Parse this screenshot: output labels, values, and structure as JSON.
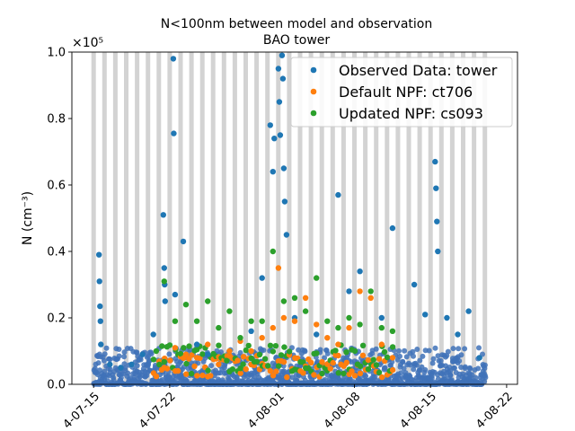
{
  "chart_data": {
    "type": "scatter",
    "title_line1": "N<100nm between model and observation",
    "title_line2": "BAO tower",
    "ylabel": "N (cm⁻³)",
    "y_multiplier_label": "×10⁵",
    "xlim": [
      "2014-07-13",
      "2014-08-23"
    ],
    "ylim": [
      0,
      1.0
    ],
    "y_ticks": [
      0.0,
      0.2,
      0.4,
      0.6,
      0.8,
      1.0
    ],
    "y_tick_labels": [
      "0.0",
      "0.2",
      "0.4",
      "0.6",
      "0.8",
      "1.0"
    ],
    "x_ticks": [
      "2014-07-15",
      "2014-07-22",
      "2014-08-01",
      "2014-08-08",
      "2014-08-15",
      "2014-08-22"
    ],
    "x_tick_labels": [
      "4-07-15",
      "4-07-22",
      "4-08-01",
      "4-08-08",
      "4-08-15",
      "4-08-22"
    ],
    "night_shading": {
      "color": "#d3d3d3",
      "start_day": "2014-07-15",
      "end_day": "2014-08-20"
    },
    "legend_placement": "top-right",
    "series": [
      {
        "name": "Observed Data: tower",
        "color": "#1f77b4",
        "points": [
          [
            "2014-07-15 12:00",
            0.39
          ],
          [
            "2014-07-15 13:00",
            0.31
          ],
          [
            "2014-07-15 14:00",
            0.235
          ],
          [
            "2014-07-15 15:00",
            0.19
          ],
          [
            "2014-07-15 16:00",
            0.12
          ],
          [
            "2014-07-16 12:00",
            0.06
          ],
          [
            "2014-07-17 12:00",
            0.05
          ],
          [
            "2014-07-18 12:00",
            0.06
          ],
          [
            "2014-07-19 12:00",
            0.09
          ],
          [
            "2014-07-20 12:00",
            0.15
          ],
          [
            "2014-07-21 10:00",
            0.51
          ],
          [
            "2014-07-21 12:00",
            0.35
          ],
          [
            "2014-07-21 13:00",
            0.3
          ],
          [
            "2014-07-21 14:00",
            0.25
          ],
          [
            "2014-07-22 08:00",
            0.98
          ],
          [
            "2014-07-22 09:00",
            0.755
          ],
          [
            "2014-07-22 12:00",
            0.27
          ],
          [
            "2014-07-23 06:00",
            0.43
          ],
          [
            "2014-07-24 12:00",
            0.12
          ],
          [
            "2014-07-25 12:00",
            0.09
          ],
          [
            "2014-07-27 12:00",
            0.1
          ],
          [
            "2014-07-29 12:00",
            0.16
          ],
          [
            "2014-07-30 12:00",
            0.32
          ],
          [
            "2014-07-31 06:00",
            0.78
          ],
          [
            "2014-07-31 12:00",
            0.64
          ],
          [
            "2014-07-31 15:00",
            0.74
          ],
          [
            "2014-08-01 00:00",
            0.95
          ],
          [
            "2014-08-01 02:00",
            0.85
          ],
          [
            "2014-08-01 04:00",
            0.75
          ],
          [
            "2014-08-01 08:00",
            0.99
          ],
          [
            "2014-08-01 10:00",
            0.92
          ],
          [
            "2014-08-01 12:00",
            0.65
          ],
          [
            "2014-08-01 14:00",
            0.55
          ],
          [
            "2014-08-01 18:00",
            0.45
          ],
          [
            "2014-08-02 12:00",
            0.2
          ],
          [
            "2014-08-04 12:00",
            0.15
          ],
          [
            "2014-08-06 12:00",
            0.57
          ],
          [
            "2014-08-07 12:00",
            0.28
          ],
          [
            "2014-08-08 12:00",
            0.34
          ],
          [
            "2014-08-10 12:00",
            0.2
          ],
          [
            "2014-08-11 12:00",
            0.47
          ],
          [
            "2014-08-13 12:00",
            0.3
          ],
          [
            "2014-08-14 12:00",
            0.21
          ],
          [
            "2014-08-15 10:00",
            0.67
          ],
          [
            "2014-08-15 12:00",
            0.59
          ],
          [
            "2014-08-15 14:00",
            0.49
          ],
          [
            "2014-08-15 16:00",
            0.4
          ],
          [
            "2014-08-16 12:00",
            0.2
          ],
          [
            "2014-08-17 12:00",
            0.15
          ],
          [
            "2014-08-18 12:00",
            0.22
          ],
          [
            "2014-08-19 12:00",
            0.08
          ]
        ]
      },
      {
        "name": "Default NPF: ct706",
        "color": "#ff7f0e",
        "points": [
          [
            "2014-07-21 12:00",
            0.05
          ],
          [
            "2014-07-22 12:00",
            0.11
          ],
          [
            "2014-07-23 12:00",
            0.09
          ],
          [
            "2014-07-24 12:00",
            0.08
          ],
          [
            "2014-07-25 12:00",
            0.12
          ],
          [
            "2014-07-26 12:00",
            0.06
          ],
          [
            "2014-07-27 12:00",
            0.1
          ],
          [
            "2014-07-28 12:00",
            0.13
          ],
          [
            "2014-07-29 12:00",
            0.1
          ],
          [
            "2014-07-30 12:00",
            0.14
          ],
          [
            "2014-07-31 12:00",
            0.17
          ],
          [
            "2014-08-01 00:00",
            0.35
          ],
          [
            "2014-08-01 12:00",
            0.2
          ],
          [
            "2014-08-02 12:00",
            0.19
          ],
          [
            "2014-08-03 12:00",
            0.26
          ],
          [
            "2014-08-04 12:00",
            0.18
          ],
          [
            "2014-08-05 12:00",
            0.14
          ],
          [
            "2014-08-06 12:00",
            0.12
          ],
          [
            "2014-08-07 12:00",
            0.17
          ],
          [
            "2014-08-08 12:00",
            0.28
          ],
          [
            "2014-08-09 12:00",
            0.26
          ],
          [
            "2014-08-10 12:00",
            0.12
          ],
          [
            "2014-08-11 12:00",
            0.08
          ]
        ]
      },
      {
        "name": "Updated NPF: cs093",
        "color": "#2ca02c",
        "points": [
          [
            "2014-07-21 12:00",
            0.31
          ],
          [
            "2014-07-22 12:00",
            0.19
          ],
          [
            "2014-07-23 12:00",
            0.24
          ],
          [
            "2014-07-24 12:00",
            0.19
          ],
          [
            "2014-07-25 12:00",
            0.25
          ],
          [
            "2014-07-26 12:00",
            0.17
          ],
          [
            "2014-07-27 12:00",
            0.22
          ],
          [
            "2014-07-28 12:00",
            0.14
          ],
          [
            "2014-07-29 12:00",
            0.19
          ],
          [
            "2014-07-30 12:00",
            0.19
          ],
          [
            "2014-07-31 12:00",
            0.4
          ],
          [
            "2014-08-01 12:00",
            0.25
          ],
          [
            "2014-08-02 12:00",
            0.26
          ],
          [
            "2014-08-03 12:00",
            0.22
          ],
          [
            "2014-08-04 12:00",
            0.32
          ],
          [
            "2014-08-05 12:00",
            0.19
          ],
          [
            "2014-08-06 12:00",
            0.17
          ],
          [
            "2014-08-07 12:00",
            0.2
          ],
          [
            "2014-08-08 12:00",
            0.18
          ],
          [
            "2014-08-09 12:00",
            0.28
          ],
          [
            "2014-08-10 12:00",
            0.17
          ],
          [
            "2014-08-11 12:00",
            0.16
          ]
        ]
      }
    ]
  }
}
